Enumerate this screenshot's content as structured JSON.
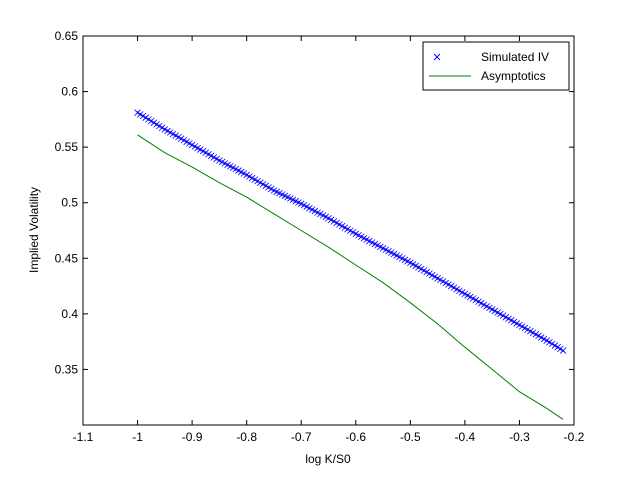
{
  "chart_data": {
    "type": "line",
    "xlabel": "log K/S0",
    "ylabel": "Implied Volatility",
    "xlim": [
      -1.1,
      -0.2
    ],
    "ylim": [
      0.3,
      0.65
    ],
    "xticks": [
      -1.1,
      -1,
      -0.9,
      -0.8,
      -0.7,
      -0.6,
      -0.5,
      -0.4,
      -0.3,
      -0.2
    ],
    "xtick_labels": [
      "-1.1",
      "-1",
      "-0.9",
      "-0.8",
      "-0.7",
      "-0.6",
      "-0.5",
      "-0.4",
      "-0.3",
      "-0.2"
    ],
    "yticks": [
      0.35,
      0.4,
      0.45,
      0.5,
      0.55,
      0.6,
      0.65
    ],
    "ytick_labels": [
      "0.35",
      "0.4",
      "0.45",
      "0.5",
      "0.55",
      "0.6",
      "0.65"
    ],
    "legend_position": "top-right",
    "grid": false,
    "series": [
      {
        "name": "Simulated IV",
        "style": "markers",
        "marker": "x",
        "color": "#0000ff",
        "x": [
          -1.0,
          -0.95,
          -0.9,
          -0.85,
          -0.8,
          -0.75,
          -0.7,
          -0.65,
          -0.6,
          -0.55,
          -0.5,
          -0.45,
          -0.4,
          -0.35,
          -0.3,
          -0.25,
          -0.22
        ],
        "y": [
          0.581,
          0.566,
          0.552,
          0.538,
          0.525,
          0.511,
          0.499,
          0.486,
          0.472,
          0.459,
          0.446,
          0.432,
          0.418,
          0.404,
          0.39,
          0.376,
          0.367
        ]
      },
      {
        "name": "Asymptotics",
        "style": "line",
        "color": "#008000",
        "x": [
          -1.0,
          -0.95,
          -0.9,
          -0.85,
          -0.8,
          -0.75,
          -0.7,
          -0.65,
          -0.6,
          -0.55,
          -0.5,
          -0.45,
          -0.4,
          -0.35,
          -0.3,
          -0.25,
          -0.22
        ],
        "y": [
          0.561,
          0.545,
          0.532,
          0.518,
          0.505,
          0.49,
          0.475,
          0.46,
          0.444,
          0.428,
          0.41,
          0.391,
          0.37,
          0.35,
          0.33,
          0.315,
          0.305
        ]
      }
    ]
  }
}
